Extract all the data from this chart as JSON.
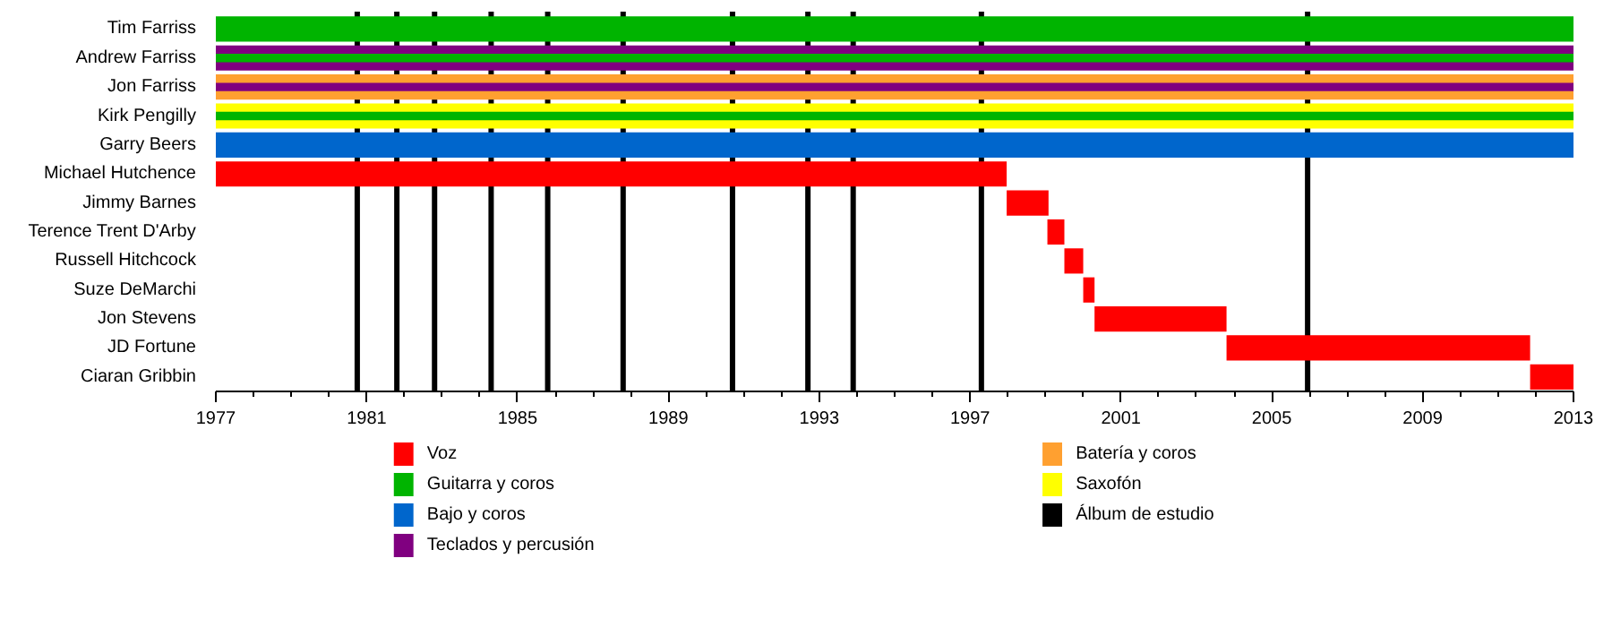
{
  "chart_data": {
    "type": "bar",
    "orientation": "horizontal",
    "categories": [
      "Tim Farriss",
      "Andrew Farriss",
      "Jon Farriss",
      "Kirk Pengilly",
      "Garry Beers",
      "Michael Hutchence",
      "Jimmy Barnes",
      "Terence Trent D'Arby",
      "Russell Hitchcock",
      "Suze DeMarchi",
      "Jon Stevens",
      "JD Fortune",
      "Ciaran Gribbin"
    ],
    "series": [
      {
        "name": "Voz",
        "color": "#ff0000",
        "base": [
          null,
          null,
          null,
          null,
          null,
          1977,
          1997.97,
          1999.05,
          1999.5,
          2000.0,
          2000.3,
          2003.8,
          2011.85
        ],
        "values": [
          null,
          null,
          null,
          null,
          null,
          20.97,
          1.11,
          0.45,
          0.5,
          0.3,
          3.5,
          8.05,
          1.15
        ]
      },
      {
        "name": "Guitarra y coros",
        "color": "#00b400",
        "base": [
          1977,
          1977,
          null,
          1977,
          null,
          null,
          null,
          null,
          null,
          null,
          null,
          null,
          null
        ],
        "values": [
          36,
          36,
          null,
          36,
          null,
          null,
          null,
          null,
          null,
          null,
          null,
          null,
          null
        ]
      },
      {
        "name": "Bajo y coros",
        "color": "#0066cc",
        "base": [
          null,
          null,
          null,
          null,
          1977,
          null,
          null,
          null,
          null,
          null,
          null,
          null,
          null
        ],
        "values": [
          null,
          null,
          null,
          null,
          36,
          null,
          null,
          null,
          null,
          null,
          null,
          null,
          null
        ]
      },
      {
        "name": "Teclados y percusión",
        "color": "#800080",
        "base": [
          null,
          1977,
          1977,
          null,
          null,
          null,
          null,
          null,
          null,
          null,
          null,
          null,
          null
        ],
        "values": [
          null,
          36,
          36,
          null,
          null,
          null,
          null,
          null,
          null,
          null,
          null,
          null,
          null
        ]
      },
      {
        "name": "Batería y coros",
        "color": "#ffa030",
        "base": [
          null,
          null,
          1977,
          null,
          null,
          null,
          null,
          null,
          null,
          null,
          null,
          null,
          null
        ],
        "values": [
          null,
          null,
          36,
          null,
          null,
          null,
          null,
          null,
          null,
          null,
          null,
          null,
          null
        ]
      },
      {
        "name": "Saxofón",
        "color": "#ffff00",
        "base": [
          null,
          null,
          null,
          1977,
          null,
          null,
          null,
          null,
          null,
          null,
          null,
          null,
          null
        ],
        "values": [
          null,
          null,
          null,
          36,
          null,
          null,
          null,
          null,
          null,
          null,
          null,
          null,
          null
        ]
      }
    ],
    "ref_lines": [
      {
        "axis": "x",
        "value": 1980.75,
        "label": "Álbum de estudio",
        "color": "#000000"
      },
      {
        "axis": "x",
        "value": 1981.8,
        "color": "#000000"
      },
      {
        "axis": "x",
        "value": 1982.8,
        "color": "#000000"
      },
      {
        "axis": "x",
        "value": 1984.3,
        "color": "#000000"
      },
      {
        "axis": "x",
        "value": 1985.8,
        "color": "#000000"
      },
      {
        "axis": "x",
        "value": 1987.8,
        "color": "#000000"
      },
      {
        "axis": "x",
        "value": 1990.7,
        "color": "#000000"
      },
      {
        "axis": "x",
        "value": 1992.7,
        "color": "#000000"
      },
      {
        "axis": "x",
        "value": 1993.9,
        "color": "#000000"
      },
      {
        "axis": "x",
        "value": 1997.3,
        "color": "#000000"
      },
      {
        "axis": "x",
        "value": 2005.95,
        "color": "#000000"
      }
    ],
    "xlim": [
      1977,
      2013
    ],
    "xticks": [
      1977,
      {
        "value": 1978,
        "label": null
      },
      {
        "value": 1979,
        "label": null
      },
      {
        "value": 1980,
        "label": null
      },
      1981,
      {
        "value": 1982,
        "label": null
      },
      {
        "value": 1983,
        "label": null
      },
      {
        "value": 1984,
        "label": null
      },
      1985,
      {
        "value": 1986,
        "label": null
      },
      {
        "value": 1987,
        "label": null
      },
      {
        "value": 1988,
        "label": null
      },
      1989,
      {
        "value": 1990,
        "label": null
      },
      {
        "value": 1991,
        "label": null
      },
      {
        "value": 1992,
        "label": null
      },
      1993,
      {
        "value": 1994,
        "label": null
      },
      {
        "value": 1995,
        "label": null
      },
      {
        "value": 1996,
        "label": null
      },
      1997,
      {
        "value": 1998,
        "label": null
      },
      {
        "value": 1999,
        "label": null
      },
      {
        "value": 2000,
        "label": null
      },
      2001,
      {
        "value": 2002,
        "label": null
      },
      {
        "value": 2003,
        "label": null
      },
      {
        "value": 2004,
        "label": null
      },
      2005,
      {
        "value": 2006,
        "label": null
      },
      {
        "value": 2007,
        "label": null
      },
      {
        "value": 2008,
        "label": null
      },
      2009,
      {
        "value": 2010,
        "label": null
      },
      {
        "value": 2011,
        "label": null
      },
      {
        "value": 2012,
        "label": null
      },
      2013
    ],
    "grid": false,
    "legend": "bottom"
  }
}
